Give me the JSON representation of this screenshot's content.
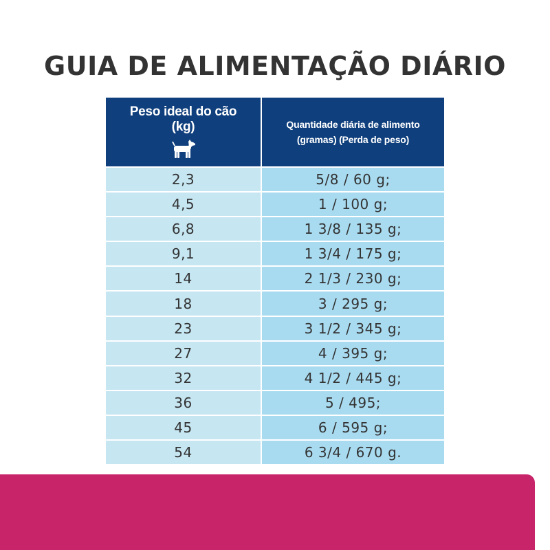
{
  "title": "GUIA DE ALIMENTAÇÃO DIÁRIO",
  "table": {
    "header_weight_line1": "Peso ideal do cão",
    "header_weight_line2": "(kg)",
    "header_amount_line1": "Quantidade diária de alimento",
    "header_amount_line2": "(gramas) (Perda de peso)",
    "header_icon": "dog-icon",
    "rows": [
      {
        "weight": "2,3",
        "amount": "5/8 / 60 g;"
      },
      {
        "weight": "4,5",
        "amount": "1 / 100 g;"
      },
      {
        "weight": "6,8",
        "amount": "1 3/8 / 135 g;"
      },
      {
        "weight": "9,1",
        "amount": "1 3/4 / 175 g;"
      },
      {
        "weight": "14",
        "amount": "2 1/3 / 230 g;"
      },
      {
        "weight": "18",
        "amount": "3 / 295 g;"
      },
      {
        "weight": "23",
        "amount": "3 1/2 / 345 g;"
      },
      {
        "weight": "27",
        "amount": "4 / 395 g;"
      },
      {
        "weight": "32",
        "amount": "4 1/2 / 445 g;"
      },
      {
        "weight": "36",
        "amount": "5 / 495;"
      },
      {
        "weight": "45",
        "amount": "6 / 595 g;"
      },
      {
        "weight": "54",
        "amount": "6 3/4 / 670 g."
      }
    ]
  },
  "colors": {
    "title": "#333333",
    "header_bg": "#0f3f7d",
    "col1_bg": "#c6e6f2",
    "col2_bg": "#a9dbf0",
    "band": "#c7246a"
  }
}
